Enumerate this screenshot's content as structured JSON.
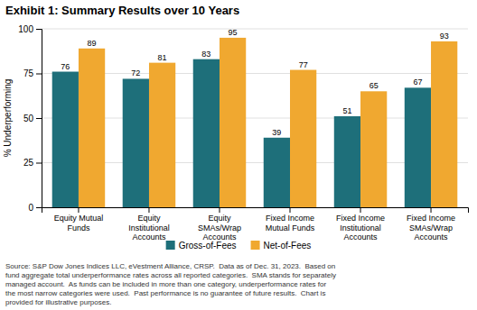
{
  "chart_data": {
    "type": "bar",
    "title": "Exhibit 1: Summary Results over 10 Years",
    "categories": [
      "Equity Mutual\nFunds",
      "Equity\nInstitutional\nAccounts",
      "Equity\nSMAs/Wrap\nAccounts",
      "Fixed Income\nMutual Funds",
      "Fixed Income\nInstitutional\nAccounts",
      "Fixed Income\nSMAs/Wrap\nAccounts"
    ],
    "series": [
      {
        "name": "Gross-of-Fees",
        "color": "#1e6f7a",
        "values": [
          76,
          72,
          83,
          39,
          51,
          67
        ]
      },
      {
        "name": "Net-of-Fees",
        "color": "#f0a830",
        "values": [
          89,
          81,
          95,
          77,
          65,
          93
        ]
      }
    ],
    "ylabel": "% Underperforming",
    "ylim": [
      0,
      100
    ],
    "yticks": [
      0,
      25,
      50,
      75,
      100
    ],
    "grid": true,
    "data_labels": true,
    "legend": "bottom",
    "footnote": [
      "Source: S&P Dow Jones Indices LLC, eVestment Alliance, CRSP.  Data as of Dec. 31, 2023.  Based on",
      "fund aggregate total underperformance rates across all reported categories.  SMA stands for separately",
      "managed account.  As funds can be included in more than one category, underperformance rates for",
      "the most narrow categories were used.  Past performance is no guarantee of future results.  Chart is",
      "provided for illustrative purposes."
    ]
  }
}
